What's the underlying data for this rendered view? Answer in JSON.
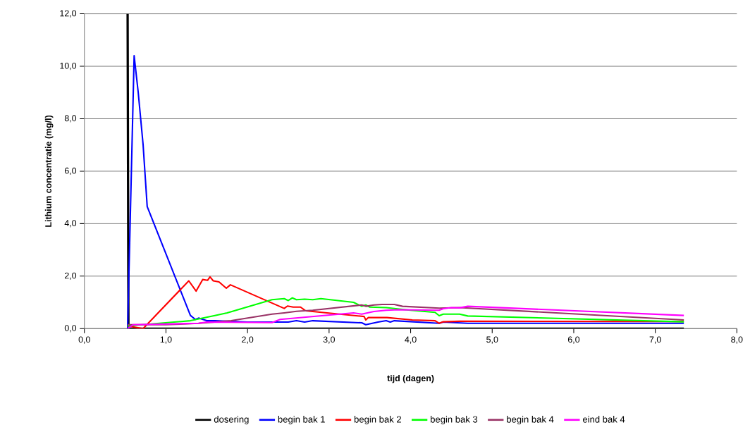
{
  "chart_data": {
    "type": "line",
    "xlabel": "tijd (dagen)",
    "ylabel": "Lithium concentratie (mg/l)",
    "xlim": [
      0,
      8
    ],
    "ylim": [
      0,
      12
    ],
    "xticks": [
      {
        "value": 0,
        "label": "0,0"
      },
      {
        "value": 1,
        "label": "1,0"
      },
      {
        "value": 2,
        "label": "2,0"
      },
      {
        "value": 3,
        "label": "3,0"
      },
      {
        "value": 4,
        "label": "4,0"
      },
      {
        "value": 5,
        "label": "5,0"
      },
      {
        "value": 6,
        "label": "6,0"
      },
      {
        "value": 7,
        "label": "7,0"
      },
      {
        "value": 8,
        "label": "8,0"
      }
    ],
    "yticks": [
      {
        "value": 0,
        "label": "0,0"
      },
      {
        "value": 2,
        "label": "2,0"
      },
      {
        "value": 4,
        "label": "4,0"
      },
      {
        "value": 6,
        "label": "6,0"
      },
      {
        "value": 8,
        "label": "8,0"
      },
      {
        "value": 10,
        "label": "10,0"
      },
      {
        "value": 12,
        "label": "12,0"
      }
    ],
    "grid": "y",
    "legend": "bottom",
    "marker": "none",
    "line_style": "solid",
    "series": [
      {
        "name": "dosering",
        "color": "#000000",
        "x": [
          0.53,
          0.54,
          7.35
        ],
        "values": [
          12,
          0,
          0
        ]
      },
      {
        "name": "begin bak 1",
        "color": "#0000ff",
        "x": [
          0.53,
          0.61,
          0.66,
          0.72,
          0.77,
          1.3,
          1.36,
          1.4,
          1.5,
          1.6,
          2.0,
          2.5,
          2.6,
          2.7,
          2.8,
          3.4,
          3.45,
          3.6,
          3.7,
          3.75,
          3.8,
          4.35,
          4.4,
          4.7,
          7.35
        ],
        "values": [
          0,
          10.4,
          9.0,
          7.0,
          4.65,
          0.5,
          0.35,
          0.4,
          0.3,
          0.3,
          0.25,
          0.25,
          0.3,
          0.25,
          0.3,
          0.22,
          0.15,
          0.25,
          0.3,
          0.25,
          0.3,
          0.2,
          0.25,
          0.2,
          0.2
        ]
      },
      {
        "name": "begin bak 2",
        "color": "#ff0000",
        "x": [
          0.53,
          0.72,
          1.28,
          1.37,
          1.45,
          1.51,
          1.54,
          1.58,
          1.65,
          1.74,
          1.79,
          2.45,
          2.49,
          2.56,
          2.65,
          2.71,
          3.43,
          3.45,
          3.48,
          3.71,
          4.02,
          4.3,
          4.35,
          4.4,
          4.6,
          7.35
        ],
        "values": [
          0.1,
          0.0,
          1.82,
          1.43,
          1.87,
          1.84,
          1.97,
          1.82,
          1.78,
          1.54,
          1.67,
          0.77,
          0.86,
          0.82,
          0.82,
          0.68,
          0.46,
          0.33,
          0.42,
          0.42,
          0.33,
          0.3,
          0.2,
          0.26,
          0.28,
          0.27
        ]
      },
      {
        "name": "begin bak 3",
        "color": "#00ff00",
        "x": [
          0.53,
          1.3,
          1.45,
          1.6,
          1.75,
          2.3,
          2.45,
          2.5,
          2.55,
          2.6,
          2.7,
          2.8,
          2.9,
          3.3,
          3.4,
          3.45,
          3.5,
          3.7,
          4.0,
          4.3,
          4.35,
          4.4,
          4.6,
          4.7,
          7.35
        ],
        "values": [
          0.1,
          0.3,
          0.4,
          0.5,
          0.6,
          1.1,
          1.14,
          1.07,
          1.17,
          1.1,
          1.12,
          1.1,
          1.14,
          1.0,
          0.85,
          0.9,
          0.82,
          0.8,
          0.7,
          0.62,
          0.49,
          0.55,
          0.55,
          0.48,
          0.26
        ]
      },
      {
        "name": "begin bak 4",
        "color": "#993366",
        "x": [
          0.53,
          1.0,
          1.4,
          1.8,
          2.3,
          2.45,
          2.6,
          2.8,
          3.4,
          3.45,
          3.55,
          3.65,
          3.8,
          3.9,
          4.35,
          4.6,
          7.35
        ],
        "values": [
          0.15,
          0.15,
          0.2,
          0.3,
          0.55,
          0.6,
          0.66,
          0.7,
          0.9,
          0.85,
          0.9,
          0.92,
          0.92,
          0.85,
          0.78,
          0.8,
          0.33
        ]
      },
      {
        "name": "eind bak 4",
        "color": "#ff00ff",
        "x": [
          0.53,
          0.6,
          1.4,
          1.5,
          2.3,
          2.4,
          3.3,
          3.4,
          3.55,
          3.7,
          3.85,
          4.35,
          4.4,
          4.5,
          4.6,
          4.7,
          7.35
        ],
        "values": [
          0.0,
          0.15,
          0.2,
          0.25,
          0.23,
          0.35,
          0.6,
          0.55,
          0.65,
          0.7,
          0.72,
          0.7,
          0.76,
          0.8,
          0.79,
          0.85,
          0.5
        ]
      }
    ]
  }
}
